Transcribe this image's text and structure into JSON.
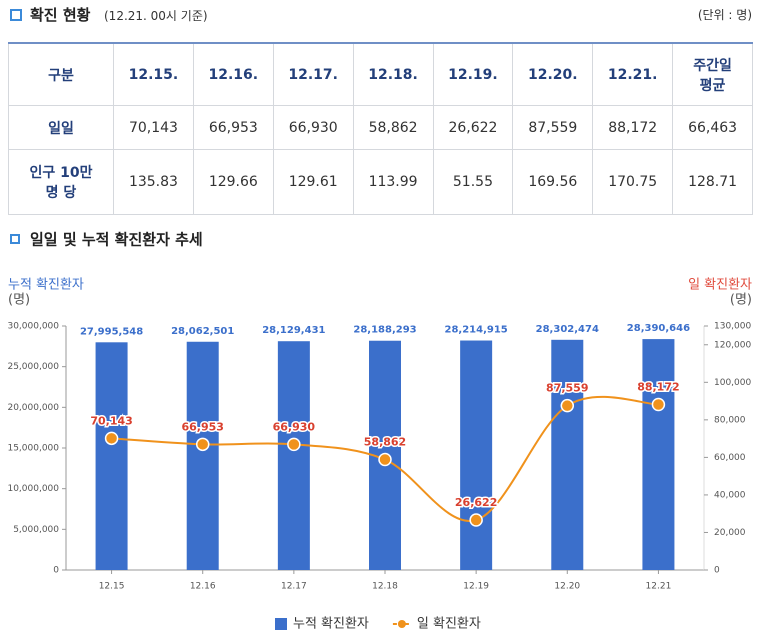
{
  "header": {
    "title": "확진 현황",
    "note": "(12.21. 00시 기준)",
    "unit": "(단위 : 명)"
  },
  "table": {
    "header": [
      "구분",
      "12.15.",
      "12.16.",
      "12.17.",
      "12.18.",
      "12.19.",
      "12.20.",
      "12.21.",
      "주간일\n평균"
    ],
    "rows": [
      [
        "일일",
        "70,143",
        "66,953",
        "66,930",
        "58,862",
        "26,622",
        "87,559",
        "88,172",
        "66,463"
      ],
      [
        "인구 10만\n명 당",
        "135.83",
        "129.66",
        "129.61",
        "113.99",
        "51.55",
        "169.56",
        "170.75",
        "128.71"
      ]
    ]
  },
  "chart_data": {
    "type": "bar",
    "title": "일일 및 누적 확진환자 추세",
    "y_label": "누적 확진환자",
    "y_unit": "(명)",
    "y2_label": "일 확진환자",
    "y2_unit": "(명)",
    "categories": [
      "12.15",
      "12.16",
      "12.17",
      "12.18",
      "12.19",
      "12.20",
      "12.21"
    ],
    "series": [
      {
        "name": "누적 확진환자",
        "type": "bar",
        "color": "#3b6fcb",
        "values": [
          27995548,
          28062501,
          28129431,
          28188293,
          28214915,
          28302474,
          28390646
        ],
        "value_labels": [
          "27,995,548",
          "28,062,501",
          "28,129,431",
          "28,188,293",
          "28,214,915",
          "28,302,474",
          "28,390,646"
        ]
      },
      {
        "name": "일 확진환자",
        "type": "line",
        "axis": "y2",
        "color": "#f0921c",
        "values": [
          70143,
          66953,
          66930,
          58862,
          26622,
          87559,
          88172
        ],
        "value_labels": [
          "70,143",
          "66,953",
          "66,930",
          "58,862",
          "26,622",
          "87,559",
          "88,172"
        ]
      }
    ],
    "ylim": [
      0,
      30000000
    ],
    "yticks": [
      0,
      {
        "value": 5000000,
        "label": "5,000,000"
      },
      {
        "value": 10000000,
        "label": "10,000,000"
      },
      {
        "value": 15000000,
        "label": "15,000,000"
      },
      {
        "value": 20000000,
        "label": "20,000,000"
      },
      {
        "value": 25000000,
        "label": "25,000,000"
      },
      {
        "value": 30000000,
        "label": "30,000,000"
      }
    ],
    "y2lim": [
      0,
      130000
    ],
    "y2ticks": [
      0,
      {
        "value": 20000,
        "label": "20,000"
      },
      {
        "value": 40000,
        "label": "40,000"
      },
      {
        "value": 60000,
        "label": "60,000"
      },
      {
        "value": 80000,
        "label": "80,000"
      },
      {
        "value": 100000,
        "label": "100,000"
      },
      {
        "value": 120000,
        "label": "120,000"
      },
      {
        "value": 130000,
        "label": "130,000"
      }
    ],
    "grid": false,
    "legend": "bottom"
  }
}
